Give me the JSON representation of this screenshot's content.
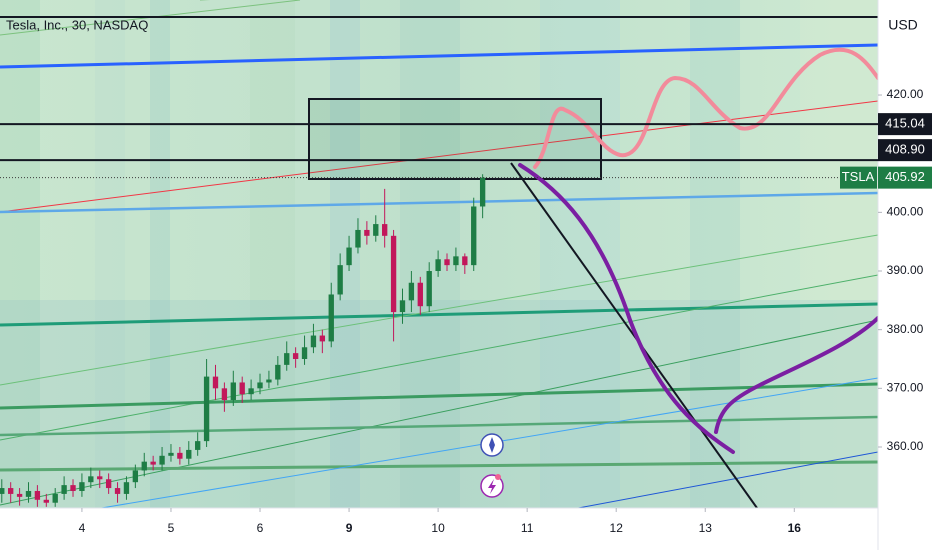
{
  "chart_data": {
    "type": "candlestick",
    "title": "Tesla, Inc., 30, NASDAQ",
    "currency": "USD",
    "symbol": "TSLA",
    "up_color": "#1e7d45",
    "down_color": "#c2185b",
    "xlim": [
      -0.92,
      8.94
    ],
    "xticks": [
      {
        "value": 0,
        "label": "4"
      },
      {
        "value": 1,
        "label": "5"
      },
      {
        "value": 2,
        "label": "6"
      },
      {
        "value": 3,
        "label": "9"
      },
      {
        "value": 4,
        "label": "10"
      },
      {
        "value": 5,
        "label": "11"
      },
      {
        "value": 6,
        "label": "12"
      },
      {
        "value": 7,
        "label": "13"
      },
      {
        "value": 8,
        "label": "16"
      }
    ],
    "ylim": [
      349.6,
      436.2
    ],
    "yticks": [
      {
        "value": 360,
        "label": "360.00"
      },
      {
        "value": 370,
        "label": "370.00"
      },
      {
        "value": 380,
        "label": "380.00"
      },
      {
        "value": 390,
        "label": "390.00"
      },
      {
        "value": 400,
        "label": "400.00"
      },
      {
        "value": 420,
        "label": "420.00"
      }
    ],
    "price_lines": [
      {
        "value": 415.04,
        "label": "415.04",
        "color": "#131722"
      },
      {
        "value": 408.9,
        "label": "408.90",
        "color": "#131722"
      }
    ],
    "last_price": {
      "value": 405.92,
      "label": "405.92",
      "color": "#1e7d45"
    },
    "x": [
      -0.9,
      -0.8,
      -0.7,
      -0.6,
      -0.5,
      -0.4,
      -0.3,
      -0.2,
      -0.1,
      0,
      0.1,
      0.2,
      0.3,
      0.4,
      0.5,
      0.6,
      0.7,
      0.8,
      0.9,
      1.0,
      1.1,
      1.2,
      1.3,
      1.4,
      1.5,
      1.6,
      1.7,
      1.8,
      1.9,
      2.0,
      2.1,
      2.2,
      2.3,
      2.4,
      2.5,
      2.6,
      2.7,
      2.8,
      2.9,
      3.0,
      3.1,
      3.2,
      3.3,
      3.4,
      3.5,
      3.6,
      3.7,
      3.8,
      3.9,
      4.0,
      4.1,
      4.2,
      4.3,
      4.4,
      4.5
    ],
    "open": [
      352,
      353,
      352,
      351.5,
      352.5,
      351,
      350.5,
      352,
      353.5,
      352.5,
      354,
      355,
      354.5,
      353,
      352,
      354,
      356,
      357.5,
      357,
      358.5,
      359,
      358,
      359.5,
      361,
      372,
      370,
      368,
      371,
      369,
      370,
      371,
      371.5,
      374,
      376,
      375,
      377,
      379,
      378,
      386,
      391,
      394,
      397,
      396,
      398,
      396,
      383,
      385,
      388,
      384,
      390,
      392,
      391,
      392.5,
      391,
      401
    ],
    "high": [
      354.5,
      354,
      353,
      354,
      353.5,
      352,
      353,
      355,
      354.5,
      355.5,
      356.5,
      356,
      355.5,
      354,
      355,
      357,
      359,
      358.5,
      360,
      360.5,
      360,
      361,
      362.5,
      375,
      374,
      371,
      373,
      372,
      371.5,
      372.5,
      373,
      375.5,
      378,
      377,
      379,
      381,
      380,
      388,
      393,
      396,
      399,
      398.5,
      399.5,
      404,
      397,
      387,
      390,
      389,
      391.5,
      393.5,
      393,
      394,
      393,
      402.5,
      406.5
    ],
    "low": [
      350.5,
      350.5,
      350,
      350.5,
      349.8,
      349.8,
      349.8,
      351,
      351.5,
      351.5,
      353,
      353,
      352,
      350.5,
      351,
      353,
      355,
      356,
      356,
      357.5,
      357,
      357,
      358.5,
      360,
      368,
      366,
      367,
      367.5,
      368,
      369,
      370,
      370.5,
      373,
      373.5,
      374,
      376,
      376,
      377,
      385,
      390,
      393,
      394.5,
      395,
      394,
      378,
      381,
      383,
      382.5,
      383,
      389,
      390,
      390,
      389.5,
      390,
      399
    ],
    "close": [
      353,
      352,
      351.5,
      352.5,
      351,
      350.5,
      352,
      353.5,
      352.5,
      354,
      355,
      354.5,
      353,
      352,
      354,
      356,
      357.5,
      357,
      358.5,
      359,
      358,
      359.5,
      361,
      372,
      370,
      368,
      371,
      369,
      370,
      371,
      371.5,
      374,
      376,
      375,
      377,
      379,
      378,
      386,
      391,
      394,
      397,
      396,
      398,
      396,
      383,
      385,
      388,
      384,
      390,
      392,
      391,
      392.5,
      391,
      401,
      405.92
    ]
  }
}
